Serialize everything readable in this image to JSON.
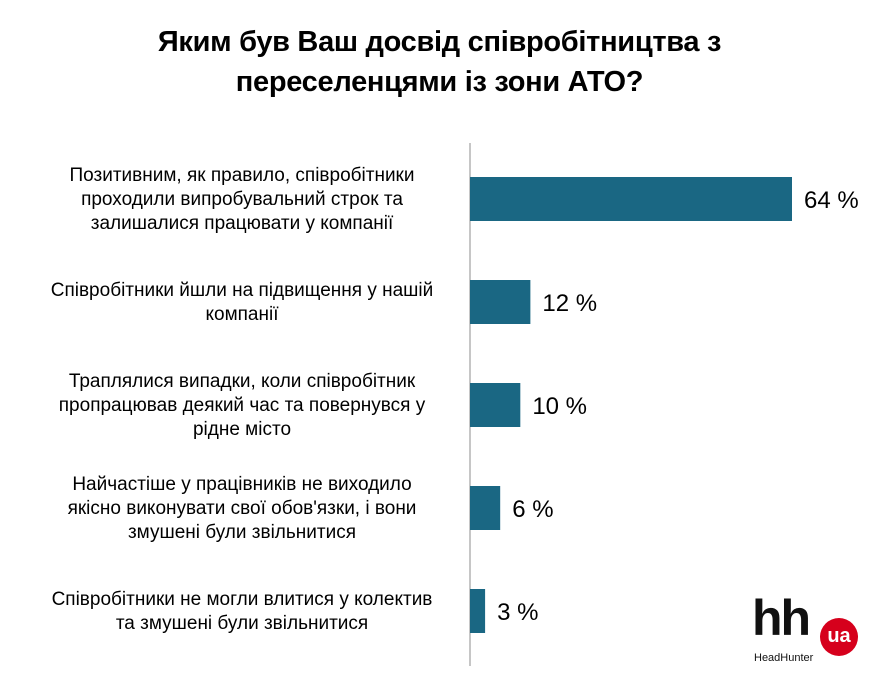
{
  "chart_data": {
    "type": "bar",
    "orientation": "horizontal",
    "title_lines": [
      "Яким був Ваш досвід співробітництва з",
      "переселенцями із зони АТО?"
    ],
    "categories": [
      [
        "Позитивним, як правило, співробітники",
        "проходили випробувальний строк та",
        "залишалися працювати у компанії"
      ],
      [
        "Співробітники йшли на підвищення у нашій",
        "компанії"
      ],
      [
        "Траплялися випадки, коли співробітник",
        "пропрацював деякий час та повернувся  у",
        "рідне місто"
      ],
      [
        "Найчастіше у працівників не  виходило",
        "якісно виконувати свої обов'язки, і вони",
        "змушені були звільнитися"
      ],
      [
        "Співробітники не могли влитися у колектив",
        "та змушені були звільнитися"
      ]
    ],
    "values": [
      64,
      12,
      10,
      6,
      3
    ],
    "value_labels": [
      "64 %",
      "12 %",
      "10 %",
      "6 %",
      "3 %"
    ],
    "xlim": [
      0,
      64
    ],
    "grid": false,
    "bar_color": "#1a6783"
  },
  "logo": {
    "main": "hh",
    "badge": "ua",
    "sub": "HeadHunter"
  }
}
